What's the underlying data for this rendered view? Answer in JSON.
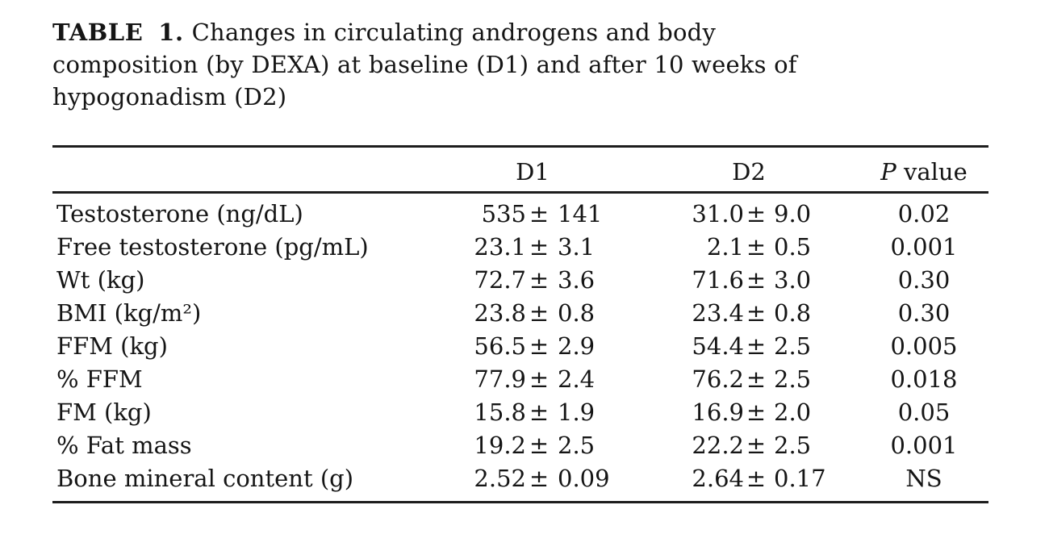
{
  "page": {
    "background": "#ffffff",
    "text_color": "#151515",
    "rule_color": "#1d1d1d"
  },
  "caption": {
    "label": "TABLE 1.",
    "line1": "Changes in circulating androgens and body",
    "line2": "composition (by DEXA) at baseline (D1) and after 10 weeks of",
    "line3": "hypogonadism (D2)"
  },
  "symbols": {
    "plus_minus": "±"
  },
  "table": {
    "headers": {
      "d1": "D1",
      "d2": "D2",
      "p_italic": "P",
      "p_rest": " value"
    },
    "rows": [
      {
        "label": "Testosterone (ng/dL)",
        "d1": {
          "mean": "535",
          "sd": "141"
        },
        "d2": {
          "mean": "31.0",
          "sd": "9.0"
        },
        "p": "0.02"
      },
      {
        "label": "Free testosterone (pg/mL)",
        "d1": {
          "mean": "23.1",
          "sd": "3.1"
        },
        "d2": {
          "mean": "2.1",
          "sd": "0.5"
        },
        "p": "0.001"
      },
      {
        "label": "Wt (kg)",
        "d1": {
          "mean": "72.7",
          "sd": "3.6"
        },
        "d2": {
          "mean": "71.6",
          "sd": "3.0"
        },
        "p": "0.30"
      },
      {
        "label": "BMI (kg/m²)",
        "d1": {
          "mean": "23.8",
          "sd": "0.8"
        },
        "d2": {
          "mean": "23.4",
          "sd": "0.8"
        },
        "p": "0.30"
      },
      {
        "label": "FFM (kg)",
        "d1": {
          "mean": "56.5",
          "sd": "2.9"
        },
        "d2": {
          "mean": "54.4",
          "sd": "2.5"
        },
        "p": "0.005"
      },
      {
        "label": "% FFM",
        "d1": {
          "mean": "77.9",
          "sd": "2.4"
        },
        "d2": {
          "mean": "76.2",
          "sd": "2.5"
        },
        "p": "0.018"
      },
      {
        "label": "FM (kg)",
        "d1": {
          "mean": "15.8",
          "sd": "1.9"
        },
        "d2": {
          "mean": "16.9",
          "sd": "2.0"
        },
        "p": "0.05"
      },
      {
        "label": "% Fat mass",
        "d1": {
          "mean": "19.2",
          "sd": "2.5"
        },
        "d2": {
          "mean": "22.2",
          "sd": "2.5"
        },
        "p": "0.001"
      },
      {
        "label": "Bone mineral content (g)",
        "d1": {
          "mean": "2.52",
          "sd": "0.09"
        },
        "d2": {
          "mean": "2.64",
          "sd": "0.17"
        },
        "p": "NS"
      }
    ]
  }
}
